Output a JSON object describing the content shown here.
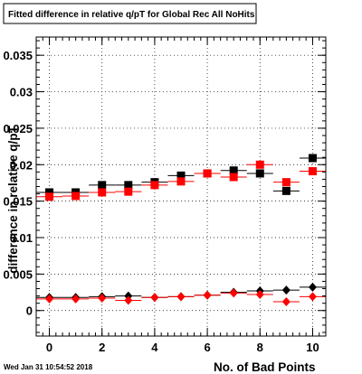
{
  "title": "Fitted difference in relative q/pT for Global Rec All NoHits",
  "timestamp": "Wed Jan 31 10:54:52 2018",
  "chart_data": {
    "type": "scatter",
    "title": "Fitted difference in relative q/pT for Global Rec All NoHits",
    "xlabel": "No. of Bad Points",
    "ylabel": "difference in relative q/pT",
    "xlim": [
      -0.5,
      10.5
    ],
    "ylim": [
      -0.0035,
      0.0375
    ],
    "x_ticks": [
      0,
      2,
      4,
      6,
      8,
      10
    ],
    "x_tick_labels": [
      "0",
      "2",
      "4",
      "6",
      "8",
      "10"
    ],
    "y_ticks": [
      0,
      0.005,
      0.01,
      0.015,
      0.02,
      0.025,
      0.03,
      0.035
    ],
    "y_tick_labels": [
      "0",
      "0.005",
      "0.01",
      "0.015",
      "0.02",
      "0.025",
      "0.03",
      "0.035"
    ],
    "grid": true,
    "x": [
      0,
      1,
      2,
      3,
      4,
      5,
      6,
      7,
      8,
      9,
      10
    ],
    "series": [
      {
        "marker": "square",
        "color": "#000000",
        "values": [
          0.0162,
          0.0162,
          0.0172,
          0.0172,
          0.0176,
          0.0185,
          0.0188,
          0.0192,
          0.0188,
          0.0164,
          0.0209
        ]
      },
      {
        "marker": "square",
        "color": "#ff0000",
        "values": [
          0.0156,
          0.0157,
          0.0162,
          0.0163,
          0.0172,
          0.0177,
          0.0188,
          0.0183,
          0.02,
          0.0176,
          0.0191
        ]
      },
      {
        "marker": "diamond",
        "color": "#000000",
        "values": [
          0.0018,
          0.0018,
          0.0019,
          0.002,
          0.0018,
          0.0019,
          0.0021,
          0.0025,
          0.0027,
          0.0028,
          0.0032
        ]
      },
      {
        "marker": "diamond",
        "color": "#ff0000",
        "values": [
          0.0016,
          0.0016,
          0.0017,
          0.0014,
          0.0018,
          0.0019,
          0.0021,
          0.0024,
          0.0022,
          0.0012,
          0.0019
        ]
      }
    ]
  }
}
